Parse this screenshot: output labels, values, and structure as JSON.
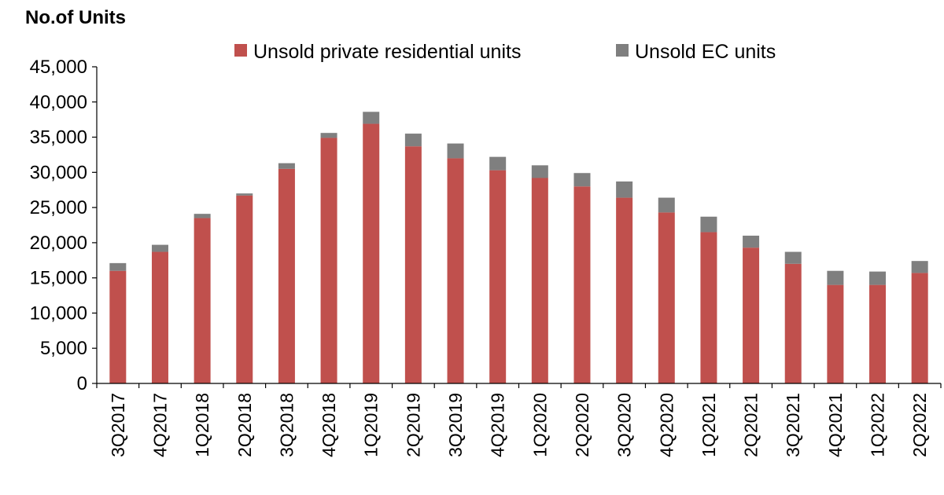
{
  "chart_data": {
    "type": "bar",
    "stacked": true,
    "ylabel": "No.of Units",
    "xlabel": "",
    "ylim": [
      0,
      45000
    ],
    "ytick_step": 5000,
    "yticks": [
      "0",
      "5,000",
      "10,000",
      "15,000",
      "20,000",
      "25,000",
      "30,000",
      "35,000",
      "40,000",
      "45,000"
    ],
    "categories": [
      "3Q2017",
      "4Q2017",
      "1Q2018",
      "2Q2018",
      "3Q2018",
      "4Q2018",
      "1Q2019",
      "2Q2019",
      "3Q2019",
      "4Q2019",
      "1Q2020",
      "2Q2020",
      "3Q2020",
      "4Q2020",
      "1Q2021",
      "2Q2021",
      "3Q2021",
      "4Q2021",
      "1Q2022",
      "2Q2022"
    ],
    "series": [
      {
        "name": "Unsold private residential units",
        "color": "#c0504d",
        "values": [
          16000,
          18700,
          23500,
          26700,
          30500,
          34900,
          36900,
          33700,
          32000,
          30300,
          29200,
          28000,
          26400,
          24300,
          21500,
          19300,
          17000,
          14000,
          14000,
          15700
        ]
      },
      {
        "name": "Unsold EC units",
        "color": "#7f7f7f",
        "values": [
          1100,
          1000,
          600,
          300,
          800,
          700,
          1700,
          1800,
          2100,
          1900,
          1800,
          1900,
          2300,
          2100,
          2200,
          1700,
          1700,
          2000,
          1900,
          1700
        ]
      }
    ],
    "grid": false,
    "legend_position": "top"
  }
}
